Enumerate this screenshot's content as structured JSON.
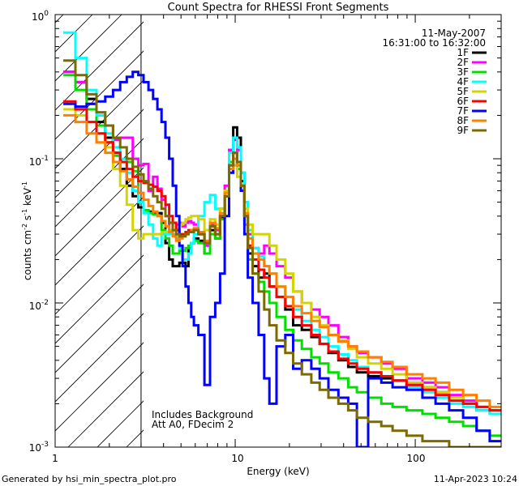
{
  "chart_data": {
    "type": "line",
    "title": "Count Spectra for RHESSI Front Segments",
    "xlabel": "Energy (keV)",
    "ylabel_base": "counts cm",
    "ylabel_sup1": "-2",
    "ylabel_mid": " s",
    "ylabel_sup2": "-1",
    "ylabel_end": " keV",
    "ylabel_sup3": "-1",
    "xscale": "log",
    "yscale": "log",
    "xlim": [
      1,
      300
    ],
    "ylim": [
      0.001,
      1
    ],
    "x_ticks": [
      {
        "value": 1,
        "label": "1"
      },
      {
        "value": 10,
        "label": "10"
      },
      {
        "value": 100,
        "label": "100"
      }
    ],
    "y_ticks": [
      {
        "value": 1,
        "base": "10",
        "exp": "0"
      },
      {
        "value": 0.1,
        "base": "10",
        "exp": "-1"
      },
      {
        "value": 0.01,
        "base": "10",
        "exp": "-2"
      },
      {
        "value": 0.001,
        "base": "10",
        "exp": "-3"
      }
    ],
    "date": "11-May-2007",
    "time_range": "16:31:00 to 16:32:00",
    "annotation_1": "Includes Background",
    "annotation_2": "Att A0, FDecim 2",
    "hatch_region_x": [
      1,
      3
    ],
    "footer_left": "Generated by hsi_min_spectra_plot.pro",
    "footer_right": "11-Apr-2023 10:24",
    "x": [
      1.2,
      1.4,
      1.6,
      1.8,
      2.0,
      2.2,
      2.4,
      2.6,
      2.8,
      3.0,
      3.2,
      3.4,
      3.6,
      3.8,
      4.0,
      4.2,
      4.4,
      4.6,
      4.8,
      5.0,
      5.2,
      5.4,
      5.6,
      5.8,
      6.0,
      6.5,
      7.0,
      7.5,
      8.0,
      8.5,
      9.0,
      9.5,
      10.0,
      10.5,
      11.0,
      11.5,
      12.0,
      13.0,
      14.0,
      15.0,
      16.0,
      18.0,
      20.0,
      22.0,
      25.0,
      28.0,
      31.0,
      35.0,
      40.0,
      45.0,
      50.0,
      60.0,
      70.0,
      80.0,
      100.0,
      120.0,
      140.0,
      170.0,
      200.0,
      240.0,
      280.0
    ],
    "series": [
      {
        "name": "1F",
        "color": "#000000",
        "values": [
          0.4,
          0.34,
          0.26,
          0.18,
          0.14,
          0.11,
          0.085,
          0.065,
          0.055,
          0.046,
          0.044,
          0.043,
          0.042,
          0.042,
          0.036,
          0.026,
          0.02,
          0.018,
          0.018,
          0.019,
          0.019,
          0.018,
          0.024,
          0.026,
          0.028,
          0.027,
          0.022,
          0.032,
          0.028,
          0.039,
          0.06,
          0.115,
          0.165,
          0.14,
          0.07,
          0.04,
          0.022,
          0.018,
          0.015,
          0.016,
          0.013,
          0.011,
          0.009,
          0.007,
          0.0065,
          0.0058,
          0.0052,
          0.0045,
          0.004,
          0.0036,
          0.0033,
          0.0031,
          0.003,
          0.0029,
          0.0027,
          0.0026,
          0.0024,
          0.0022,
          0.002,
          0.0018,
          0.0018
        ]
      },
      {
        "name": "2F",
        "color": "#ff00ff",
        "values": [
          0.4,
          0.34,
          0.24,
          0.2,
          0.17,
          0.135,
          0.14,
          0.14,
          0.1,
          0.09,
          0.092,
          0.06,
          0.075,
          0.062,
          0.052,
          0.04,
          0.032,
          0.032,
          0.035,
          0.036,
          0.034,
          0.036,
          0.037,
          0.036,
          0.035,
          0.03,
          0.025,
          0.035,
          0.032,
          0.045,
          0.065,
          0.115,
          0.135,
          0.115,
          0.08,
          0.05,
          0.03,
          0.024,
          0.022,
          0.025,
          0.022,
          0.018,
          0.015,
          0.012,
          0.01,
          0.009,
          0.008,
          0.007,
          0.0058,
          0.005,
          0.0045,
          0.0042,
          0.0038,
          0.0035,
          0.003,
          0.0028,
          0.0026,
          0.0023,
          0.0021,
          0.0019,
          0.0017
        ]
      },
      {
        "name": "3F",
        "color": "#00e000",
        "values": [
          0.38,
          0.3,
          0.22,
          0.17,
          0.13,
          0.105,
          0.1,
          0.095,
          0.082,
          0.05,
          0.044,
          0.042,
          0.041,
          0.04,
          0.032,
          0.028,
          0.025,
          0.022,
          0.022,
          0.023,
          0.023,
          0.024,
          0.025,
          0.026,
          0.027,
          0.026,
          0.022,
          0.03,
          0.028,
          0.038,
          0.055,
          0.095,
          0.11,
          0.085,
          0.06,
          0.035,
          0.02,
          0.016,
          0.014,
          0.012,
          0.01,
          0.008,
          0.0065,
          0.0055,
          0.0048,
          0.0042,
          0.0038,
          0.0033,
          0.003,
          0.0026,
          0.0024,
          0.0022,
          0.002,
          0.0019,
          0.0018,
          0.0017,
          0.0016,
          0.0015,
          0.0014,
          0.0013,
          0.0012
        ]
      },
      {
        "name": "4F",
        "color": "#00ffff",
        "values": [
          0.75,
          0.5,
          0.3,
          0.2,
          0.15,
          0.12,
          0.1,
          0.08,
          0.06,
          0.05,
          0.042,
          0.035,
          0.028,
          0.025,
          0.03,
          0.03,
          0.03,
          0.03,
          0.028,
          0.024,
          0.02,
          0.02,
          0.022,
          0.026,
          0.03,
          0.04,
          0.05,
          0.056,
          0.045,
          0.045,
          0.06,
          0.11,
          0.14,
          0.12,
          0.08,
          0.05,
          0.032,
          0.024,
          0.021,
          0.018,
          0.016,
          0.013,
          0.011,
          0.009,
          0.0075,
          0.0065,
          0.0058,
          0.005,
          0.0044,
          0.004,
          0.0036,
          0.0033,
          0.0031,
          0.0029,
          0.0026,
          0.0024,
          0.0022,
          0.002,
          0.0019,
          0.0018,
          0.0017
        ]
      },
      {
        "name": "5F",
        "color": "#d4d400",
        "values": [
          0.22,
          0.2,
          0.18,
          0.15,
          0.12,
          0.085,
          0.065,
          0.048,
          0.032,
          0.028,
          0.03,
          0.03,
          0.03,
          0.03,
          0.031,
          0.031,
          0.032,
          0.032,
          0.033,
          0.035,
          0.036,
          0.038,
          0.039,
          0.04,
          0.04,
          0.038,
          0.032,
          0.038,
          0.035,
          0.045,
          0.06,
          0.08,
          0.09,
          0.075,
          0.06,
          0.045,
          0.035,
          0.03,
          0.03,
          0.03,
          0.025,
          0.02,
          0.016,
          0.012,
          0.01,
          0.008,
          0.007,
          0.006,
          0.0055,
          0.0048,
          0.0042,
          0.0038,
          0.0035,
          0.0032,
          0.0028,
          0.0026,
          0.0024,
          0.0022,
          0.002,
          0.0019,
          0.0018
        ]
      },
      {
        "name": "6F",
        "color": "#ff0000",
        "values": [
          0.25,
          0.22,
          0.18,
          0.15,
          0.13,
          0.11,
          0.095,
          0.085,
          0.075,
          0.07,
          0.068,
          0.066,
          0.064,
          0.06,
          0.055,
          0.048,
          0.04,
          0.036,
          0.032,
          0.03,
          0.03,
          0.031,
          0.032,
          0.032,
          0.032,
          0.03,
          0.026,
          0.034,
          0.03,
          0.04,
          0.055,
          0.09,
          0.11,
          0.095,
          0.065,
          0.04,
          0.025,
          0.02,
          0.017,
          0.015,
          0.013,
          0.011,
          0.0095,
          0.008,
          0.007,
          0.006,
          0.0052,
          0.0046,
          0.0041,
          0.0038,
          0.0035,
          0.0033,
          0.0031,
          0.0029,
          0.0027,
          0.0025,
          0.0023,
          0.0021,
          0.002,
          0.0019,
          0.0018
        ]
      },
      {
        "name": "7F",
        "color": "#0000ff",
        "values": [
          0.24,
          0.23,
          0.24,
          0.25,
          0.27,
          0.3,
          0.34,
          0.37,
          0.4,
          0.38,
          0.34,
          0.3,
          0.26,
          0.22,
          0.18,
          0.14,
          0.1,
          0.065,
          0.04,
          0.025,
          0.018,
          0.013,
          0.01,
          0.008,
          0.007,
          0.006,
          0.0027,
          0.008,
          0.01,
          0.016,
          0.04,
          0.08,
          0.1,
          0.09,
          0.06,
          0.03,
          0.015,
          0.01,
          0.006,
          0.003,
          0.002,
          0.005,
          0.006,
          0.0035,
          0.004,
          0.0035,
          0.003,
          0.0025,
          0.0022,
          0.002,
          0.001,
          0.003,
          0.0028,
          0.0026,
          0.0025,
          0.0022,
          0.002,
          0.0018,
          0.0016,
          0.0013,
          0.0011
        ]
      },
      {
        "name": "8F",
        "color": "#ff8000",
        "values": [
          0.2,
          0.18,
          0.15,
          0.13,
          0.11,
          0.095,
          0.082,
          0.072,
          0.064,
          0.058,
          0.052,
          0.047,
          0.043,
          0.04,
          0.037,
          0.034,
          0.031,
          0.029,
          0.027,
          0.028,
          0.029,
          0.03,
          0.031,
          0.032,
          0.033,
          0.031,
          0.027,
          0.036,
          0.033,
          0.042,
          0.058,
          0.085,
          0.1,
          0.09,
          0.065,
          0.042,
          0.028,
          0.022,
          0.02,
          0.018,
          0.016,
          0.013,
          0.011,
          0.0095,
          0.0085,
          0.0075,
          0.0068,
          0.006,
          0.0054,
          0.005,
          0.0046,
          0.0042,
          0.0039,
          0.0036,
          0.0032,
          0.003,
          0.0028,
          0.0025,
          0.0023,
          0.0021,
          0.0019
        ]
      },
      {
        "name": "9F",
        "color": "#7b6a00",
        "values": [
          0.48,
          0.38,
          0.28,
          0.21,
          0.17,
          0.14,
          0.12,
          0.1,
          0.088,
          0.078,
          0.07,
          0.062,
          0.055,
          0.05,
          0.045,
          0.04,
          0.036,
          0.032,
          0.03,
          0.029,
          0.029,
          0.03,
          0.031,
          0.031,
          0.032,
          0.03,
          0.026,
          0.034,
          0.03,
          0.04,
          0.055,
          0.09,
          0.11,
          0.095,
          0.065,
          0.04,
          0.024,
          0.016,
          0.012,
          0.009,
          0.007,
          0.0055,
          0.0045,
          0.0038,
          0.0032,
          0.0028,
          0.0025,
          0.0022,
          0.002,
          0.0018,
          0.0016,
          0.0015,
          0.0014,
          0.0013,
          0.0012,
          0.0011,
          0.0011,
          0.001,
          0.001,
          0.001,
          0.001
        ]
      }
    ]
  }
}
